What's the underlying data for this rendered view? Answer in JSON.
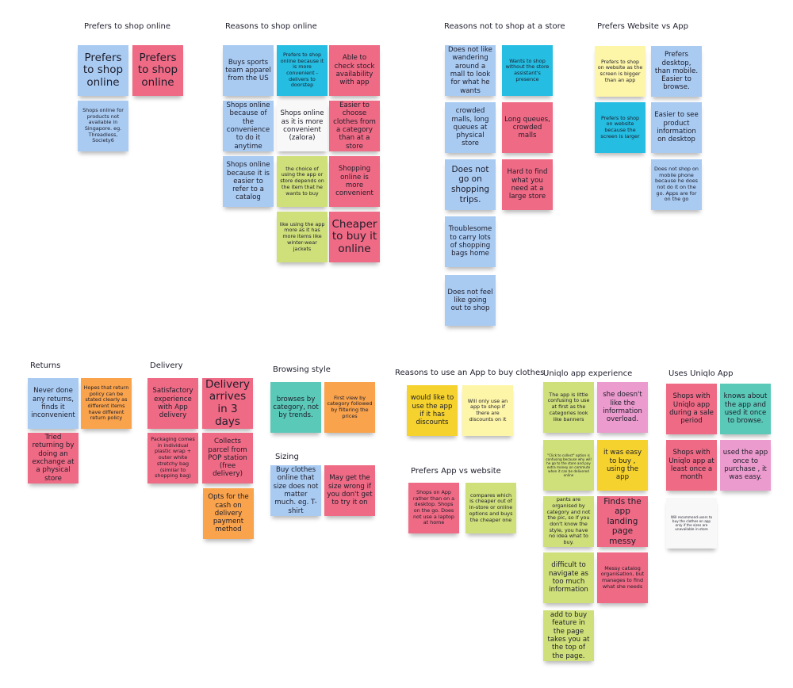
{
  "colors": {
    "blue": "#a9cbf2",
    "red": "#ef6a84",
    "cyan": "#25bde2",
    "white": "#f8f8f8",
    "green": "#cfe07a",
    "light_yellow": "#fdf5a8",
    "yellow": "#f5d22e",
    "orange": "#f9a34c",
    "teal": "#5bc9b8",
    "pink": "#eb9bcd"
  },
  "groups": [
    {
      "title": "Prefers to shop online",
      "notes": [
        {
          "text": "Prefers to shop online",
          "color": "blue"
        },
        {
          "text": "Prefers to shop online",
          "color": "red"
        },
        {
          "text": "Shops online for products not available in Singapore. eg. Threadless, Society6",
          "color": "blue"
        }
      ]
    },
    {
      "title": "Reasons to shop online",
      "notes": [
        {
          "text": "Buys sports team apparel from the US",
          "color": "blue"
        },
        {
          "text": "Prefers to shop online because it is more convenient - delivers to doorstep",
          "color": "cyan"
        },
        {
          "text": "Able to check stock availability with app",
          "color": "red"
        },
        {
          "text": "Shops online because of the convenience to do it anytime",
          "color": "blue"
        },
        {
          "text": "Shops online as it is more convenient (zalora)",
          "color": "white"
        },
        {
          "text": "Easier to choose clothes from a category than at a store",
          "color": "red"
        },
        {
          "text": "Shops online because it is easier to refer to a catalog",
          "color": "blue"
        },
        {
          "text": "the choice of using the app or store depends on the item that he wants to buy",
          "color": "green"
        },
        {
          "text": "Shopping online is more convenient",
          "color": "red"
        },
        {
          "text": "like using the app more as it has more items like winter-wear jackets",
          "color": "green"
        },
        {
          "text": "Cheaper to buy it online",
          "color": "red"
        }
      ]
    },
    {
      "title": "Reasons not to shop at a store",
      "notes": [
        {
          "text": "Does not like wandering around a mall to look for what he wants",
          "color": "blue"
        },
        {
          "text": "Wants to shop without the store assistant's presence",
          "color": "cyan"
        },
        {
          "text": "crowded malls, long queues at physical store",
          "color": "blue"
        },
        {
          "text": "Long queues, crowded malls",
          "color": "red"
        },
        {
          "text": "Does not go on shopping trips.",
          "color": "blue"
        },
        {
          "text": "Hard to find what you need at a large store",
          "color": "red"
        },
        {
          "text": "Troublesome to carry lots of shopping bags home",
          "color": "blue"
        },
        {
          "text": "Does not feel like going out to shop",
          "color": "blue"
        }
      ]
    },
    {
      "title": "Prefers Website vs App",
      "notes": [
        {
          "text": "Prefers to shop on website as the screen is bigger than an app",
          "color": "light_yellow"
        },
        {
          "text": "Prefers desktop, than mobile. Easier to browse.",
          "color": "blue"
        },
        {
          "text": "Prefers to shop on website because the screen is larger",
          "color": "cyan"
        },
        {
          "text": "Easier to see product information on desktop",
          "color": "blue"
        },
        {
          "text": "Does not shop on mobile phone because he does not do it on the go. Apps are for on the go",
          "color": "blue"
        }
      ]
    },
    {
      "title": "Returns",
      "notes": [
        {
          "text": "Never done any returns, finds it inconvenient",
          "color": "blue"
        },
        {
          "text": "Hopes that return policy can be stated clearly as different items have different return policy",
          "color": "orange"
        },
        {
          "text": "Tried returning by doing an exchange at a physical store",
          "color": "red"
        }
      ]
    },
    {
      "title": "Delivery",
      "notes": [
        {
          "text": "Satisfactory experience with App delivery",
          "color": "red"
        },
        {
          "text": "Delivery arrives in 3 days",
          "color": "red"
        },
        {
          "text": "Packaging comes in individual plastic wrap + outer white stretchy bag (similar to shopping bag)",
          "color": "red"
        },
        {
          "text": "Collects parcel from POP station (free delivery)",
          "color": "red"
        },
        {
          "text": "Opts for the cash on delivery payment method",
          "color": "orange"
        }
      ]
    },
    {
      "title": "Browsing style",
      "notes": [
        {
          "text": "browses by category, not by trends.",
          "color": "teal"
        },
        {
          "text": "First view by category followed by filtering the prices",
          "color": "orange"
        }
      ]
    },
    {
      "title": "Sizing",
      "notes": [
        {
          "text": "Buy clothes online that size does not matter much. eg. T-shirt",
          "color": "blue"
        },
        {
          "text": "May get the size wrong if you don't get to try it on",
          "color": "red"
        }
      ]
    },
    {
      "title": "Reasons to use an App to buy clothes",
      "notes": [
        {
          "text": "would like to use the app if it has discounts",
          "color": "yellow"
        },
        {
          "text": "Will only use an app to shop if there are discounts on it",
          "color": "light_yellow"
        }
      ]
    },
    {
      "title": "Prefers App vs website",
      "notes": [
        {
          "text": "Shops on App rather than on a desktop. Shops on the go. Does not use a laptop at home",
          "color": "red"
        },
        {
          "text": "compares which is cheaper out of in-store or online options and buys the cheaper one",
          "color": "green"
        }
      ]
    },
    {
      "title": "Uniqlo app experience",
      "notes": [
        {
          "text": "The app is little confusing to use at first as the categories look like banners",
          "color": "green"
        },
        {
          "text": "she doesn't like the information overload.",
          "color": "pink"
        },
        {
          "text": "\"Click to collect\" option is confusing because why will he go to the store and pay extra money on commute when it can be delivered online",
          "color": "green"
        },
        {
          "text": "it was easy to buy , using the app",
          "color": "yellow"
        },
        {
          "text": "pants are organised by category and not the pic, so if you don't know the style, you have no idea what to buy.",
          "color": "green"
        },
        {
          "text": "Finds the app landing page messy",
          "color": "red"
        },
        {
          "text": "difficult to navigate as too much information",
          "color": "green"
        },
        {
          "text": "Messy catalog organisation, but manages to find what she needs",
          "color": "red"
        },
        {
          "text": "add to buy feature in the page takes you at the top of the page.",
          "color": "green"
        }
      ]
    },
    {
      "title": "Uses Uniqlo App",
      "notes": [
        {
          "text": "Shops with Uniqlo app during a sale period",
          "color": "red"
        },
        {
          "text": "knows about the app and used it once to browse.",
          "color": "teal"
        },
        {
          "text": "Shops with Uniqlo app at least once a month",
          "color": "red"
        },
        {
          "text": "used the app once to purchase , it was easy.",
          "color": "pink"
        },
        {
          "text": "Will recommend users to buy the clothes on app only if the sizes are unavailable in-store",
          "color": "white"
        }
      ]
    }
  ]
}
